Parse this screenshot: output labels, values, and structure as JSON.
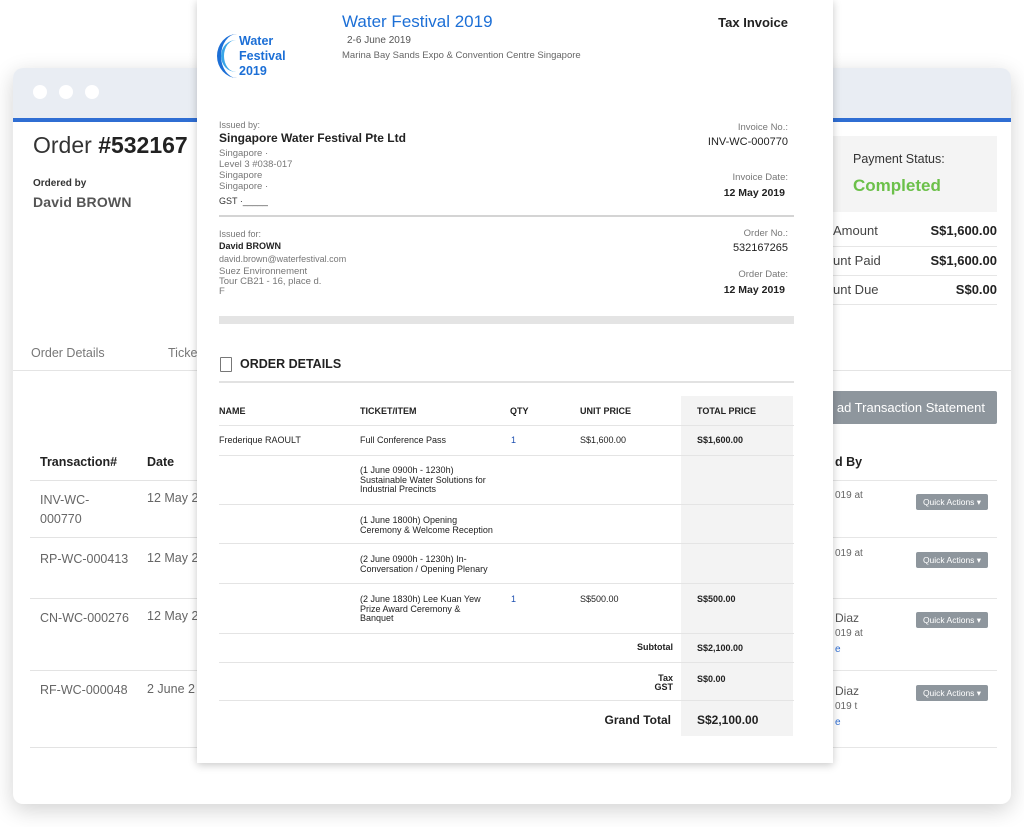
{
  "order": {
    "title_prefix": "Order ",
    "title_number": "#532167",
    "ordered_by_label": "Ordered by",
    "ordered_by_name": "David BROWN",
    "tabs": [
      "Order Details",
      "Ticke"
    ]
  },
  "transactions": {
    "headers": {
      "transaction": "Transaction#",
      "date": "Date",
      "by": "d By"
    },
    "rows": [
      {
        "id": "INV-WC-000770",
        "date": "12 May 2",
        "by_line1": "",
        "by_line2": "019 at",
        "by_line3": "",
        "action": "Quick Actions ▾"
      },
      {
        "id": "RP-WC-000413",
        "date": "12 May 2",
        "by_line1": "",
        "by_line2": "019 at",
        "by_line3": "",
        "action": "Quick Actions ▾"
      },
      {
        "id": "CN-WC-000276",
        "date": "12 May 2",
        "by_line1": "Diaz",
        "by_line2": "019 at",
        "by_line3": "e",
        "action": "Quick Actions ▾"
      },
      {
        "id": "RF-WC-000048",
        "date": "2 June 2",
        "by_line1": "Diaz",
        "by_line2": "019 t",
        "by_line3": "e",
        "action": "Quick Actions ▾"
      }
    ]
  },
  "payment": {
    "status_label": "Payment Status:",
    "status_value": "Completed",
    "status_color": "#6cc04a",
    "rows": [
      {
        "label": "Amount",
        "value": "S$1,600.00"
      },
      {
        "label": "unt Paid",
        "value": "S$1,600.00"
      },
      {
        "label": "unt Due",
        "value": "S$0.00"
      }
    ],
    "download_button": "ad Transaction Statement"
  },
  "invoice": {
    "logo_lines": [
      "Water",
      "Festival",
      "2019"
    ],
    "event_title": "Water Festival 2019",
    "event_dates": "2-6 June 2019",
    "event_venue": "Marina Bay Sands Expo & Convention Centre Singapore",
    "doc_type": "Tax Invoice",
    "issued_by_label": "Issued by:",
    "issuer_name": "Singapore Water Festival Pte Ltd",
    "issuer_address": [
      "Singapore ·",
      "Level 3 #038-017",
      "Singapore",
      "Singapore ·"
    ],
    "gst": "GST ·_____",
    "invoice_no_label": "Invoice No.:",
    "invoice_no": "INV-WC-000770",
    "invoice_date_label": "Invoice Date:",
    "invoice_date": "12 May 2019",
    "issued_for_label": "Issued for:",
    "buyer_name": "David BROWN",
    "buyer_email": "david.brown@waterfestival.com",
    "buyer_address": [
      "Suez Environnement",
      "Tour CB21 - 16, place d.",
      "F"
    ],
    "order_no_label": "Order No.:",
    "order_no": "532167265",
    "order_date_label": "Order Date:",
    "order_date": "12 May 2019",
    "section_title": "ORDER DETAILS",
    "columns": {
      "name": "NAME",
      "ticket": "TICKET/ITEM",
      "qty": "QTY",
      "unit": "UNIT PRICE",
      "total": "TOTAL PRICE"
    },
    "line_items": [
      {
        "name": "Frederique RAOULT",
        "item": [
          "Full Conference Pass"
        ],
        "qty": "1",
        "unit": "S$1,600.00",
        "total": "S$1,600.00"
      },
      {
        "name": "",
        "item": [
          "(1 June 0900h - 1230h)",
          "Sustainable Water Solutions for",
          "Industrial Precincts"
        ],
        "qty": "",
        "unit": "",
        "total": ""
      },
      {
        "name": "",
        "item": [
          "(1 June 1800h) Opening",
          "Ceremony & Welcome Reception"
        ],
        "qty": "",
        "unit": "",
        "total": ""
      },
      {
        "name": "",
        "item": [
          "(2 June 0900h - 1230h) In-",
          "Conversation / Opening Plenary"
        ],
        "qty": "",
        "unit": "",
        "total": ""
      },
      {
        "name": "",
        "item": [
          "(2 June 1830h) Lee Kuan Yew",
          "Prize Award Ceremony &",
          "Banquet"
        ],
        "qty": "1",
        "unit": "S$500.00",
        "total": "S$500.00"
      }
    ],
    "subtotal_label": "Subtotal",
    "subtotal": "S$2,100.00",
    "tax_label": [
      "Tax",
      "GST"
    ],
    "tax": "S$0.00",
    "grand_total_label": "Grand Total",
    "grand_total": "S$2,100.00"
  }
}
